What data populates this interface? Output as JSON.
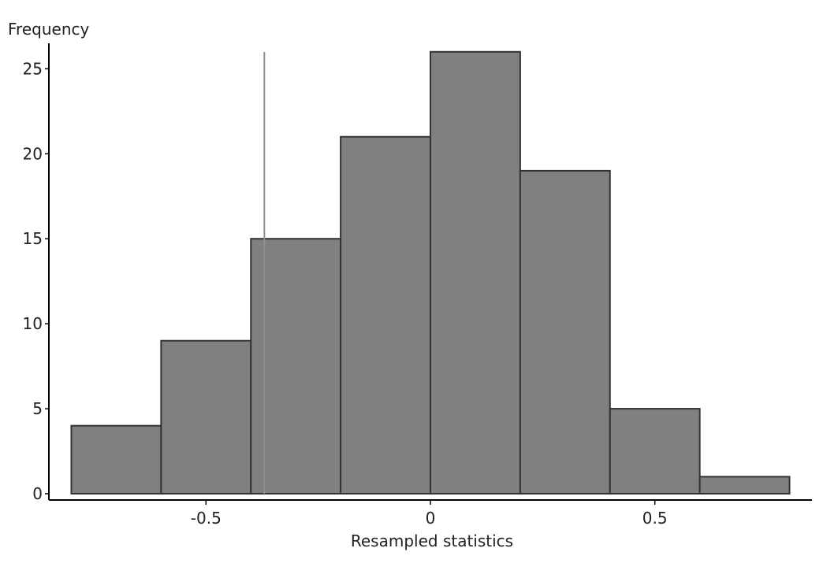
{
  "chart_data": {
    "type": "histogram",
    "y_label": "Frequency",
    "x_label": "Resampled statistics",
    "bins": [
      -0.8,
      -0.6,
      -0.4,
      -0.2,
      0,
      0.2,
      0.4,
      0.6,
      0.8
    ],
    "counts": [
      4,
      9,
      15,
      21,
      26,
      19,
      5,
      1
    ],
    "color": "#808080",
    "edge_color": "#333333",
    "reference_line": -0.37,
    "reference_color": "#8a8d9e",
    "xlim": [
      -0.85,
      0.85
    ],
    "ylim": [
      0,
      26.5
    ],
    "xticks": [
      -0.5,
      0,
      0.5
    ],
    "yticks": [
      0,
      5,
      10,
      15,
      20,
      25
    ]
  }
}
